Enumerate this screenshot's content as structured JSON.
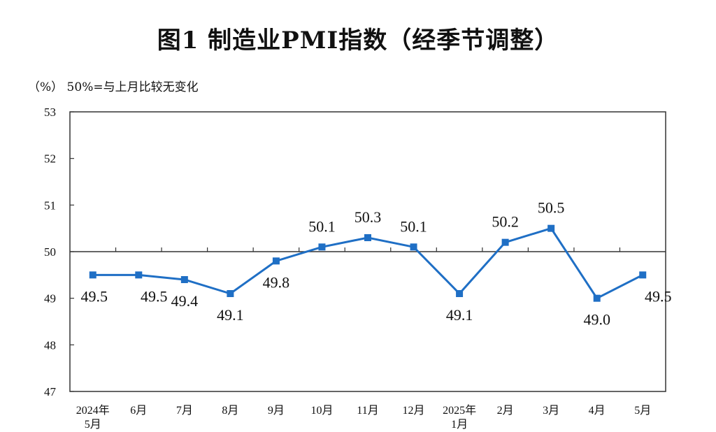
{
  "chart_data": {
    "type": "line",
    "title": "图1  制造业PMI指数（经季节调整）",
    "note": "（%）  50%=与上月比较无变化",
    "xlabel": "",
    "ylabel": "",
    "ylim": [
      47,
      53
    ],
    "yticks": [
      47,
      48,
      49,
      50,
      51,
      52,
      53
    ],
    "reference_line": 50,
    "grid": false,
    "categories": [
      [
        "2024年",
        "5月"
      ],
      [
        "6月"
      ],
      [
        "7月"
      ],
      [
        "8月"
      ],
      [
        "9月"
      ],
      [
        "10月"
      ],
      [
        "11月"
      ],
      [
        "12月"
      ],
      [
        "2025年",
        "1月"
      ],
      [
        "2月"
      ],
      [
        "3月"
      ],
      [
        "4月"
      ],
      [
        "5月"
      ]
    ],
    "series": [
      {
        "values": [
          49.5,
          49.5,
          49.4,
          49.1,
          49.8,
          50.1,
          50.3,
          50.1,
          49.1,
          50.2,
          50.5,
          49.0,
          49.5
        ],
        "labels": [
          "49.5",
          "49.5",
          "49.4",
          "49.1",
          "49.8",
          "50.1",
          "50.3",
          "50.1",
          "49.1",
          "50.2",
          "50.5",
          "49.0",
          "49.5"
        ],
        "label_positions": [
          "right",
          "right",
          "below",
          "below",
          "below",
          "above",
          "above",
          "above",
          "below",
          "above",
          "above",
          "below",
          "right"
        ],
        "color": "#1f6fc5"
      }
    ],
    "axis_color": "#333333",
    "line_color": "#1f6fc5"
  }
}
